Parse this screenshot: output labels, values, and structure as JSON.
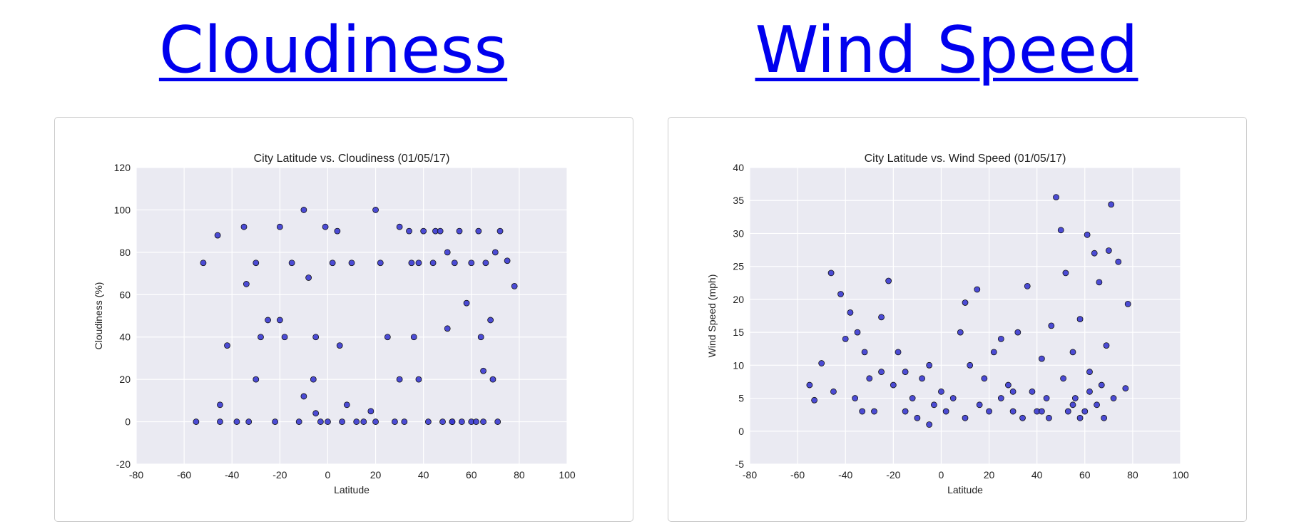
{
  "links": [
    "Cloudiness",
    "Wind Speed"
  ],
  "chart_data": [
    {
      "type": "scatter",
      "title": "City Latitude vs. Cloudiness (01/05/17)",
      "x_label": "Latitude",
      "y_label": "Cloudiness (%)",
      "xlim": [
        -80,
        100
      ],
      "ylim": [
        -20,
        120
      ],
      "xticks": [
        -80,
        -60,
        -40,
        -20,
        0,
        20,
        40,
        60,
        80,
        100
      ],
      "yticks": [
        -20,
        0,
        20,
        40,
        60,
        80,
        100,
        120
      ],
      "grid": true,
      "color": "#3a3ad0",
      "x": [
        -55,
        -52,
        -46,
        -45,
        -42,
        -38,
        -35,
        -34,
        -33,
        -30,
        -28,
        -25,
        -22,
        -20,
        -18,
        -15,
        -12,
        -10,
        -8,
        -6,
        -5,
        -3,
        -1,
        0,
        2,
        4,
        6,
        8,
        10,
        12,
        15,
        18,
        20,
        22,
        25,
        28,
        30,
        32,
        34,
        35,
        36,
        38,
        40,
        42,
        44,
        45,
        47,
        48,
        50,
        50,
        52,
        53,
        55,
        56,
        58,
        60,
        60,
        62,
        63,
        64,
        65,
        66,
        68,
        69,
        70,
        71,
        72,
        75,
        78,
        -45,
        -30,
        -10,
        5,
        20,
        38,
        52,
        65,
        -20,
        -5,
        30
      ],
      "y": [
        0,
        75,
        88,
        0,
        36,
        0,
        92,
        65,
        0,
        75,
        40,
        48,
        0,
        92,
        40,
        75,
        0,
        100,
        68,
        20,
        40,
        0,
        92,
        0,
        75,
        90,
        0,
        8,
        75,
        0,
        0,
        5,
        100,
        75,
        40,
        0,
        92,
        0,
        90,
        75,
        40,
        20,
        90,
        0,
        75,
        90,
        90,
        0,
        44,
        80,
        0,
        75,
        90,
        0,
        56,
        75,
        0,
        0,
        90,
        40,
        0,
        75,
        48,
        20,
        80,
        0,
        90,
        76,
        64,
        8,
        20,
        12,
        36,
        0,
        75,
        0,
        24,
        48,
        4,
        20
      ]
    },
    {
      "type": "scatter",
      "title": "City Latitude vs. Wind Speed (01/05/17)",
      "x_label": "Latitude",
      "y_label": "Wind Speed (mph)",
      "xlim": [
        -80,
        100
      ],
      "ylim": [
        -5,
        40
      ],
      "xticks": [
        -80,
        -60,
        -40,
        -20,
        0,
        20,
        40,
        60,
        80,
        100
      ],
      "yticks": [
        -5,
        0,
        5,
        10,
        15,
        20,
        25,
        30,
        35,
        40
      ],
      "grid": true,
      "color": "#3a3ad0",
      "x": [
        -55,
        -53,
        -50,
        -46,
        -45,
        -42,
        -40,
        -38,
        -36,
        -35,
        -33,
        -32,
        -30,
        -28,
        -25,
        -22,
        -20,
        -18,
        -15,
        -12,
        -10,
        -8,
        -5,
        -3,
        0,
        2,
        5,
        8,
        10,
        12,
        15,
        16,
        18,
        20,
        22,
        25,
        28,
        30,
        32,
        34,
        36,
        38,
        40,
        42,
        44,
        46,
        48,
        50,
        51,
        52,
        53,
        55,
        56,
        58,
        60,
        61,
        62,
        64,
        65,
        66,
        67,
        68,
        69,
        70,
        71,
        72,
        74,
        77,
        78,
        45,
        -25,
        -5,
        30,
        42,
        58,
        62,
        10,
        25,
        -15,
        55
      ],
      "y": [
        7,
        4.7,
        10.3,
        24,
        6,
        20.8,
        14,
        18,
        5,
        15,
        3,
        12,
        8,
        3,
        17.3,
        22.8,
        7,
        12,
        3,
        5,
        2,
        8,
        10,
        4,
        6,
        3,
        5,
        15,
        19.5,
        10,
        21.5,
        4,
        8,
        3,
        12,
        5,
        7,
        3,
        15,
        2,
        22,
        6,
        3,
        11,
        5,
        16,
        35.5,
        30.5,
        8,
        24,
        3,
        12,
        5,
        17,
        3,
        29.8,
        9,
        27,
        4,
        22.6,
        7,
        2,
        13,
        27.4,
        34.4,
        5,
        25.7,
        6.5,
        19.3,
        2,
        9,
        1,
        6,
        3,
        2,
        6,
        2,
        14,
        9,
        4
      ]
    }
  ]
}
